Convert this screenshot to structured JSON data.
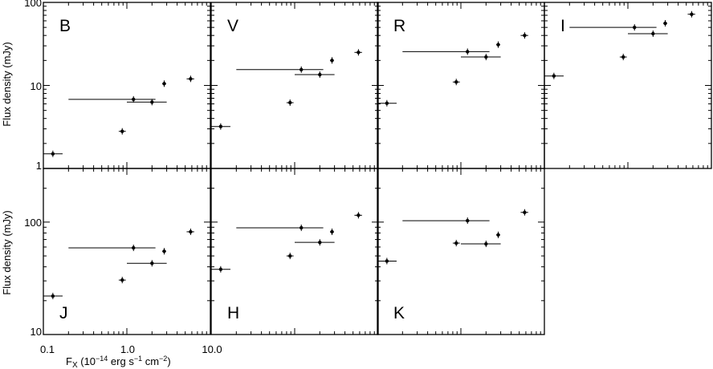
{
  "chart_data": [
    {
      "type": "scatter",
      "band": "B",
      "row": 0,
      "col": 0,
      "points": [
        {
          "x": 0.13,
          "y": 1.5,
          "xerr": [
            0.1,
            0.17
          ]
        },
        {
          "x": 0.88,
          "y": 2.8,
          "xerr": [
            0.8,
            0.97
          ]
        },
        {
          "x": 1.2,
          "y": 6.8,
          "xerr": [
            0.2,
            2.2
          ]
        },
        {
          "x": 2.0,
          "y": 6.3,
          "xerr": [
            1.0,
            3.0
          ]
        },
        {
          "x": 2.8,
          "y": 10.5,
          "xerr": [
            2.65,
            2.95
          ]
        },
        {
          "x": 5.8,
          "y": 12.0,
          "xerr": [
            5.2,
            6.4
          ]
        }
      ]
    },
    {
      "type": "scatter",
      "band": "V",
      "row": 0,
      "col": 1,
      "points": [
        {
          "x": 0.13,
          "y": 3.2,
          "xerr": [
            0.1,
            0.17
          ]
        },
        {
          "x": 0.88,
          "y": 6.2,
          "xerr": [
            0.8,
            0.97
          ]
        },
        {
          "x": 1.2,
          "y": 15.5,
          "xerr": [
            0.2,
            2.2
          ]
        },
        {
          "x": 2.0,
          "y": 13.5,
          "xerr": [
            1.0,
            3.0
          ]
        },
        {
          "x": 2.8,
          "y": 20.0,
          "xerr": [
            2.65,
            2.95
          ]
        },
        {
          "x": 5.8,
          "y": 25.0,
          "xerr": [
            5.2,
            6.4
          ]
        }
      ]
    },
    {
      "type": "scatter",
      "band": "R",
      "row": 0,
      "col": 2,
      "points": [
        {
          "x": 0.13,
          "y": 6.1,
          "xerr": [
            0.1,
            0.17
          ]
        },
        {
          "x": 0.88,
          "y": 11.0,
          "xerr": [
            0.8,
            0.97
          ]
        },
        {
          "x": 1.2,
          "y": 25.5,
          "xerr": [
            0.2,
            2.2
          ]
        },
        {
          "x": 2.0,
          "y": 22.0,
          "xerr": [
            1.0,
            3.0
          ]
        },
        {
          "x": 2.8,
          "y": 31.0,
          "xerr": [
            2.65,
            2.95
          ]
        },
        {
          "x": 5.8,
          "y": 40.0,
          "xerr": [
            5.2,
            6.4
          ]
        }
      ]
    },
    {
      "type": "scatter",
      "band": "I",
      "row": 0,
      "col": 3,
      "points": [
        {
          "x": 0.13,
          "y": 13.0,
          "xerr": [
            0.1,
            0.17
          ]
        },
        {
          "x": 0.88,
          "y": 22.0,
          "xerr": [
            0.8,
            0.97
          ]
        },
        {
          "x": 1.2,
          "y": 50.0,
          "xerr": [
            0.2,
            2.2
          ]
        },
        {
          "x": 2.0,
          "y": 42.0,
          "xerr": [
            1.0,
            3.0
          ]
        },
        {
          "x": 2.8,
          "y": 56.0,
          "xerr": [
            2.65,
            2.95
          ]
        },
        {
          "x": 5.8,
          "y": 72.0,
          "xerr": [
            5.2,
            6.4
          ]
        }
      ]
    },
    {
      "type": "scatter",
      "band": "J",
      "row": 1,
      "col": 0,
      "points": [
        {
          "x": 0.13,
          "y": 22.0,
          "xerr": [
            0.1,
            0.17
          ]
        },
        {
          "x": 0.88,
          "y": 30.5,
          "xerr": [
            0.8,
            0.97
          ]
        },
        {
          "x": 1.2,
          "y": 59.0,
          "xerr": [
            0.2,
            2.2
          ]
        },
        {
          "x": 2.0,
          "y": 43.0,
          "xerr": [
            1.0,
            3.0
          ]
        },
        {
          "x": 2.8,
          "y": 55.0,
          "xerr": [
            2.65,
            2.95
          ]
        },
        {
          "x": 5.8,
          "y": 82.0,
          "xerr": [
            5.2,
            6.4
          ]
        }
      ]
    },
    {
      "type": "scatter",
      "band": "H",
      "row": 1,
      "col": 1,
      "points": [
        {
          "x": 0.13,
          "y": 38.0,
          "xerr": [
            0.1,
            0.17
          ]
        },
        {
          "x": 0.88,
          "y": 50.0,
          "xerr": [
            0.8,
            0.97
          ]
        },
        {
          "x": 1.2,
          "y": 89.0,
          "xerr": [
            0.2,
            2.2
          ]
        },
        {
          "x": 2.0,
          "y": 66.0,
          "xerr": [
            1.0,
            3.0
          ]
        },
        {
          "x": 2.8,
          "y": 82.0,
          "xerr": [
            2.65,
            2.95
          ]
        },
        {
          "x": 5.8,
          "y": 115.0,
          "xerr": [
            5.2,
            6.4
          ]
        }
      ]
    },
    {
      "type": "scatter",
      "band": "K",
      "row": 1,
      "col": 2,
      "points": [
        {
          "x": 0.13,
          "y": 45.0,
          "xerr": [
            0.1,
            0.17
          ]
        },
        {
          "x": 0.88,
          "y": 65.0,
          "xerr": [
            0.8,
            0.97
          ]
        },
        {
          "x": 1.2,
          "y": 103.0,
          "xerr": [
            0.2,
            2.2
          ]
        },
        {
          "x": 2.0,
          "y": 64.0,
          "xerr": [
            1.0,
            3.0
          ]
        },
        {
          "x": 2.8,
          "y": 77.0,
          "xerr": [
            2.65,
            2.95
          ]
        },
        {
          "x": 5.8,
          "y": 122.0,
          "xerr": [
            5.2,
            6.4
          ]
        }
      ]
    }
  ],
  "axes": {
    "x": {
      "label_main": "F",
      "label_sub": "X",
      "label_units": " (10",
      "label_exp": "−14",
      "label_mid": " erg s",
      "label_exp2": "−1",
      "label_mid2": " cm",
      "label_exp3": "−2",
      "label_end": ")",
      "range": [
        0.1,
        10.0
      ],
      "scale": "log",
      "tick_labels": [
        "0.1",
        "1.0",
        "10.0"
      ],
      "tick_values": [
        0.1,
        1.0,
        10.0
      ]
    },
    "y_top": {
      "label": "Flux density (mJy)",
      "range": [
        1,
        100
      ],
      "scale": "log",
      "tick_labels": [
        "1",
        "10",
        "100"
      ],
      "tick_values": [
        1,
        10,
        100
      ]
    },
    "y_bottom": {
      "label": "Flux density (mJy)",
      "range": [
        10,
        300
      ],
      "scale": "log",
      "tick_labels": [
        "10",
        "100"
      ],
      "tick_values": [
        10,
        100
      ]
    }
  },
  "grid": false
}
